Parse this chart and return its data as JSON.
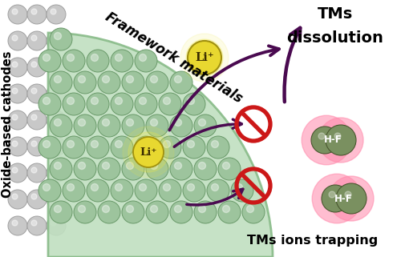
{
  "fig_width": 5.0,
  "fig_height": 3.21,
  "dpi": 100,
  "bg_color": "#ffffff",
  "framework_text": "Framework materials",
  "oxide_text": "Oxide-based cathodes",
  "tms_dissolution_line1": "TMs",
  "tms_dissolution_line2": "dissolution",
  "tms_ions_text": "TMs ions trapping",
  "li_plus_text": "Li⁺",
  "hf_text": "H-F",
  "green_wedge_color": "#c0dfc0",
  "green_wedge_edge": "#88bb88",
  "cathode_green": "#9dc49d",
  "cathode_green_edge": "#6a9a6a",
  "cathode_gray_color": "#c8c8c8",
  "cathode_gray_edge": "#a0a0a0",
  "li_ball_color": "#e8d830",
  "li_glow_color": "#f0e840",
  "hf_ball_color": "#7a9060",
  "hf_glow_color": "#ff88aa",
  "arrow_color": "#4a0a50",
  "no_sign_color": "#cc1818",
  "text_color": "#000000"
}
